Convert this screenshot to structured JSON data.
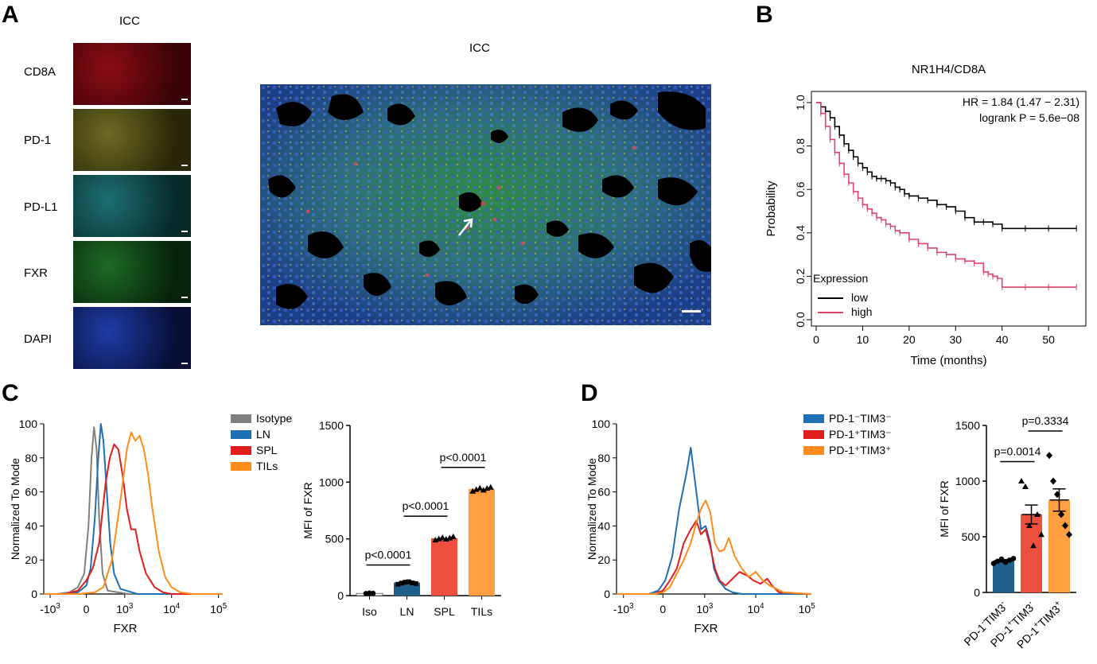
{
  "panels": {
    "a": {
      "letter": "A",
      "tiles_title": "ICC",
      "tiles": [
        {
          "label": "CD8A",
          "color": "#8b0d14",
          "bg": "#3a0307"
        },
        {
          "label": "PD-1",
          "color": "#6e6a22",
          "bg": "#2a2708"
        },
        {
          "label": "PD-L1",
          "color": "#1c6f70",
          "bg": "#082a2b"
        },
        {
          "label": "FXR",
          "color": "#1d6a25",
          "bg": "#06230a"
        },
        {
          "label": "DAPI",
          "color": "#1e3ca5",
          "bg": "#070f36"
        }
      ],
      "merge_title": "ICC"
    },
    "b": {
      "letter": "B"
    },
    "c": {
      "letter": "C"
    },
    "d": {
      "letter": "D"
    }
  },
  "chart_data": [
    {
      "id": "km",
      "type": "line",
      "title": "NR1H4/CD8A",
      "xlabel": "Time (months)",
      "ylabel": "Probability",
      "xlim": [
        0,
        57
      ],
      "ylim": [
        0,
        1.0
      ],
      "xticks": [
        "0",
        "10",
        "20",
        "30",
        "40",
        "50"
      ],
      "yticks": [
        "0.0",
        "0.2",
        "0.4",
        "0.6",
        "0.8",
        "1.0"
      ],
      "annotations": [
        "HR = 1.84 (1.47 − 2.31)",
        "logrank P = 5.6e−08"
      ],
      "legend_title": "Expression",
      "series": [
        {
          "name": "low",
          "color": "#000000",
          "x": [
            0,
            1,
            2,
            3,
            4,
            5,
            6,
            7,
            8,
            9,
            10,
            11,
            12,
            13,
            14,
            15,
            16,
            17,
            18,
            19,
            20,
            22,
            24,
            26,
            28,
            30,
            32,
            34,
            36,
            38,
            40,
            45,
            50,
            56
          ],
          "y": [
            1.0,
            0.98,
            0.96,
            0.93,
            0.89,
            0.85,
            0.81,
            0.78,
            0.75,
            0.72,
            0.7,
            0.68,
            0.66,
            0.65,
            0.65,
            0.64,
            0.63,
            0.61,
            0.6,
            0.58,
            0.57,
            0.56,
            0.55,
            0.53,
            0.52,
            0.5,
            0.47,
            0.45,
            0.45,
            0.44,
            0.42,
            0.42,
            0.42,
            0.42
          ]
        },
        {
          "name": "high",
          "color": "#e0436a",
          "x": [
            0,
            1,
            2,
            3,
            4,
            5,
            6,
            7,
            8,
            9,
            10,
            11,
            12,
            13,
            14,
            15,
            16,
            17,
            18,
            20,
            22,
            24,
            26,
            28,
            30,
            32,
            34,
            36,
            37,
            38,
            39,
            40,
            45,
            50,
            56
          ],
          "y": [
            1.0,
            0.95,
            0.89,
            0.83,
            0.77,
            0.72,
            0.67,
            0.63,
            0.59,
            0.56,
            0.53,
            0.51,
            0.49,
            0.47,
            0.46,
            0.44,
            0.43,
            0.41,
            0.4,
            0.37,
            0.35,
            0.33,
            0.31,
            0.3,
            0.28,
            0.27,
            0.26,
            0.22,
            0.21,
            0.2,
            0.19,
            0.15,
            0.15,
            0.15,
            0.15
          ]
        }
      ]
    },
    {
      "id": "c-hist",
      "type": "line",
      "xlabel": "FXR",
      "ylabel": "Normalized To Mode",
      "ylim": [
        0,
        100
      ],
      "yticks": [
        "0",
        "20",
        "40",
        "60",
        "80",
        "100"
      ],
      "xticks": [
        {
          "base": "-10",
          "exp": "3"
        },
        {
          "base": "0",
          "exp": ""
        },
        {
          "base": "10",
          "exp": "3"
        },
        {
          "base": "10",
          "exp": "4"
        },
        {
          "base": "10",
          "exp": "5"
        }
      ],
      "series": [
        {
          "name": "Isotype",
          "color": "#808080",
          "x": [
            0,
            0.3,
            0.6,
            0.8,
            0.95,
            1.05,
            1.12,
            1.18,
            1.24,
            1.3,
            1.38,
            1.5,
            2.0,
            4.2
          ],
          "y": [
            0,
            0,
            1,
            4,
            12,
            40,
            80,
            98,
            85,
            45,
            12,
            2,
            0,
            0
          ]
        },
        {
          "name": "LN",
          "color": "#1f6fb5",
          "x": [
            0,
            0.5,
            0.8,
            1.0,
            1.1,
            1.2,
            1.28,
            1.34,
            1.4,
            1.48,
            1.56,
            1.65,
            1.8,
            2.2,
            4.2
          ],
          "y": [
            0,
            0,
            1,
            5,
            15,
            45,
            80,
            100,
            90,
            60,
            30,
            12,
            3,
            0,
            0
          ]
        },
        {
          "name": "SPL",
          "color": "#e01e1e",
          "x": [
            0,
            0.5,
            0.8,
            1.0,
            1.15,
            1.3,
            1.45,
            1.55,
            1.65,
            1.75,
            1.85,
            1.95,
            2.05,
            2.15,
            2.25,
            2.4,
            2.6,
            2.8,
            3.0,
            4.2
          ],
          "y": [
            0,
            0,
            2,
            8,
            15,
            30,
            65,
            80,
            88,
            85,
            70,
            50,
            38,
            38,
            25,
            12,
            4,
            1,
            0,
            0
          ]
        },
        {
          "name": "TILs",
          "color": "#ff8c1a",
          "x": [
            0,
            0.8,
            1.2,
            1.4,
            1.6,
            1.8,
            1.95,
            2.05,
            2.15,
            2.25,
            2.35,
            2.45,
            2.55,
            2.7,
            2.85,
            3.0,
            3.2,
            3.5,
            4.2
          ],
          "y": [
            0,
            0,
            1,
            4,
            20,
            55,
            85,
            95,
            90,
            93,
            85,
            70,
            50,
            25,
            10,
            4,
            1,
            0,
            0
          ]
        }
      ]
    },
    {
      "id": "c-bar",
      "type": "bar",
      "ylabel": "MFI of FXR",
      "ylim": [
        0,
        1500
      ],
      "yticks": [
        "0",
        "500",
        "1000",
        "1500"
      ],
      "categories": [
        "Iso",
        "LN",
        "SPL",
        "TILs"
      ],
      "values": [
        20,
        115,
        505,
        940
      ],
      "colors": [
        "#ffffff",
        "#1f5f8b",
        "#ef4f3f",
        "#ff9f3f"
      ],
      "markers": [
        "circle",
        "square",
        "triangle",
        "triangle"
      ],
      "points": [
        [
          18,
          22,
          20
        ],
        [
          100,
          110,
          118,
          122,
          112,
          106
        ],
        [
          490,
          500,
          512,
          498,
          508,
          520
        ],
        [
          920,
          935,
          948,
          930,
          945,
          955
        ]
      ],
      "comparisons": [
        {
          "from": 0,
          "to": 1,
          "label": "p<0.0001",
          "y": 270
        },
        {
          "from": 1,
          "to": 2,
          "label": "p<0.0001",
          "y": 700
        },
        {
          "from": 2,
          "to": 3,
          "label": "p<0.0001",
          "y": 1130
        }
      ]
    },
    {
      "id": "d-hist",
      "type": "line",
      "xlabel": "FXR",
      "ylabel": "Normalized To Mode",
      "ylim": [
        0,
        100
      ],
      "yticks": [
        "0",
        "20",
        "40",
        "60",
        "80",
        "100"
      ],
      "xticks": [
        {
          "base": "-10",
          "exp": "3"
        },
        {
          "base": "0",
          "exp": ""
        },
        {
          "base": "10",
          "exp": "3"
        },
        {
          "base": "10",
          "exp": "4"
        },
        {
          "base": "10",
          "exp": "5"
        }
      ],
      "series": [
        {
          "name": "PD-1⁻TIM3⁻",
          "color": "#1f6fb5",
          "x": [
            0,
            0.7,
            0.9,
            1.05,
            1.2,
            1.35,
            1.5,
            1.6,
            1.72,
            1.82,
            1.92,
            2.02,
            2.1,
            2.2,
            2.35,
            2.5,
            2.7,
            4.2
          ],
          "y": [
            0,
            0,
            2,
            8,
            22,
            50,
            70,
            86,
            60,
            38,
            40,
            30,
            15,
            8,
            3,
            1,
            0,
            0
          ]
        },
        {
          "name": "PD-1⁺TIM3⁻",
          "color": "#e01e1e",
          "x": [
            0,
            0.8,
            1.0,
            1.15,
            1.3,
            1.45,
            1.6,
            1.72,
            1.82,
            1.92,
            2.02,
            2.12,
            2.22,
            2.35,
            2.5,
            2.65,
            2.8,
            2.95,
            3.1,
            3.25,
            3.35,
            3.5,
            4.2
          ],
          "y": [
            0,
            0,
            2,
            8,
            15,
            30,
            38,
            43,
            35,
            38,
            28,
            15,
            8,
            5,
            9,
            13,
            11,
            8,
            6,
            9,
            5,
            1,
            0
          ]
        },
        {
          "name": "PD-1⁺TIM3⁺",
          "color": "#ff8c1a",
          "x": [
            0,
            0.8,
            1.0,
            1.15,
            1.3,
            1.45,
            1.6,
            1.72,
            1.82,
            1.92,
            2.02,
            2.12,
            2.22,
            2.32,
            2.42,
            2.55,
            2.7,
            2.85,
            3.0,
            3.15,
            3.3,
            3.45,
            3.6,
            4.2
          ],
          "y": [
            0,
            0,
            1,
            4,
            12,
            20,
            30,
            42,
            50,
            55,
            48,
            30,
            25,
            26,
            33,
            22,
            15,
            10,
            13,
            8,
            5,
            3,
            1,
            0
          ]
        }
      ]
    },
    {
      "id": "d-bar",
      "type": "bar",
      "ylabel": "MFI of FXR",
      "ylim": [
        0,
        1500
      ],
      "yticks": [
        "0",
        "500",
        "1000",
        "1500"
      ],
      "categories": [
        {
          "a": "PD-1",
          "as": "-",
          "b": "TIM3",
          "bs": "-"
        },
        {
          "a": "PD-1",
          "as": "+",
          "b": "TIM3",
          "bs": "-"
        },
        {
          "a": "PD-1",
          "as": "+",
          "b": "TIM3",
          "bs": "+"
        }
      ],
      "values": [
        285,
        700,
        830
      ],
      "errors": [
        10,
        85,
        100
      ],
      "colors": [
        "#1f5f8b",
        "#ef4f3f",
        "#ff9f3f"
      ],
      "markers": [
        "circle",
        "triangle",
        "diamond"
      ],
      "points": [
        [
          260,
          280,
          300,
          270,
          290,
          305
        ],
        [
          1000,
          950,
          600,
          420,
          700,
          520
        ],
        [
          1230,
          1000,
          880,
          700,
          600,
          520
        ]
      ],
      "comparisons": [
        {
          "from": 0,
          "to": 1,
          "label": "p=0.0014",
          "y": 1175
        },
        {
          "from": 1,
          "to": 2,
          "label": "p=0.3334",
          "y": 1450
        }
      ]
    }
  ]
}
